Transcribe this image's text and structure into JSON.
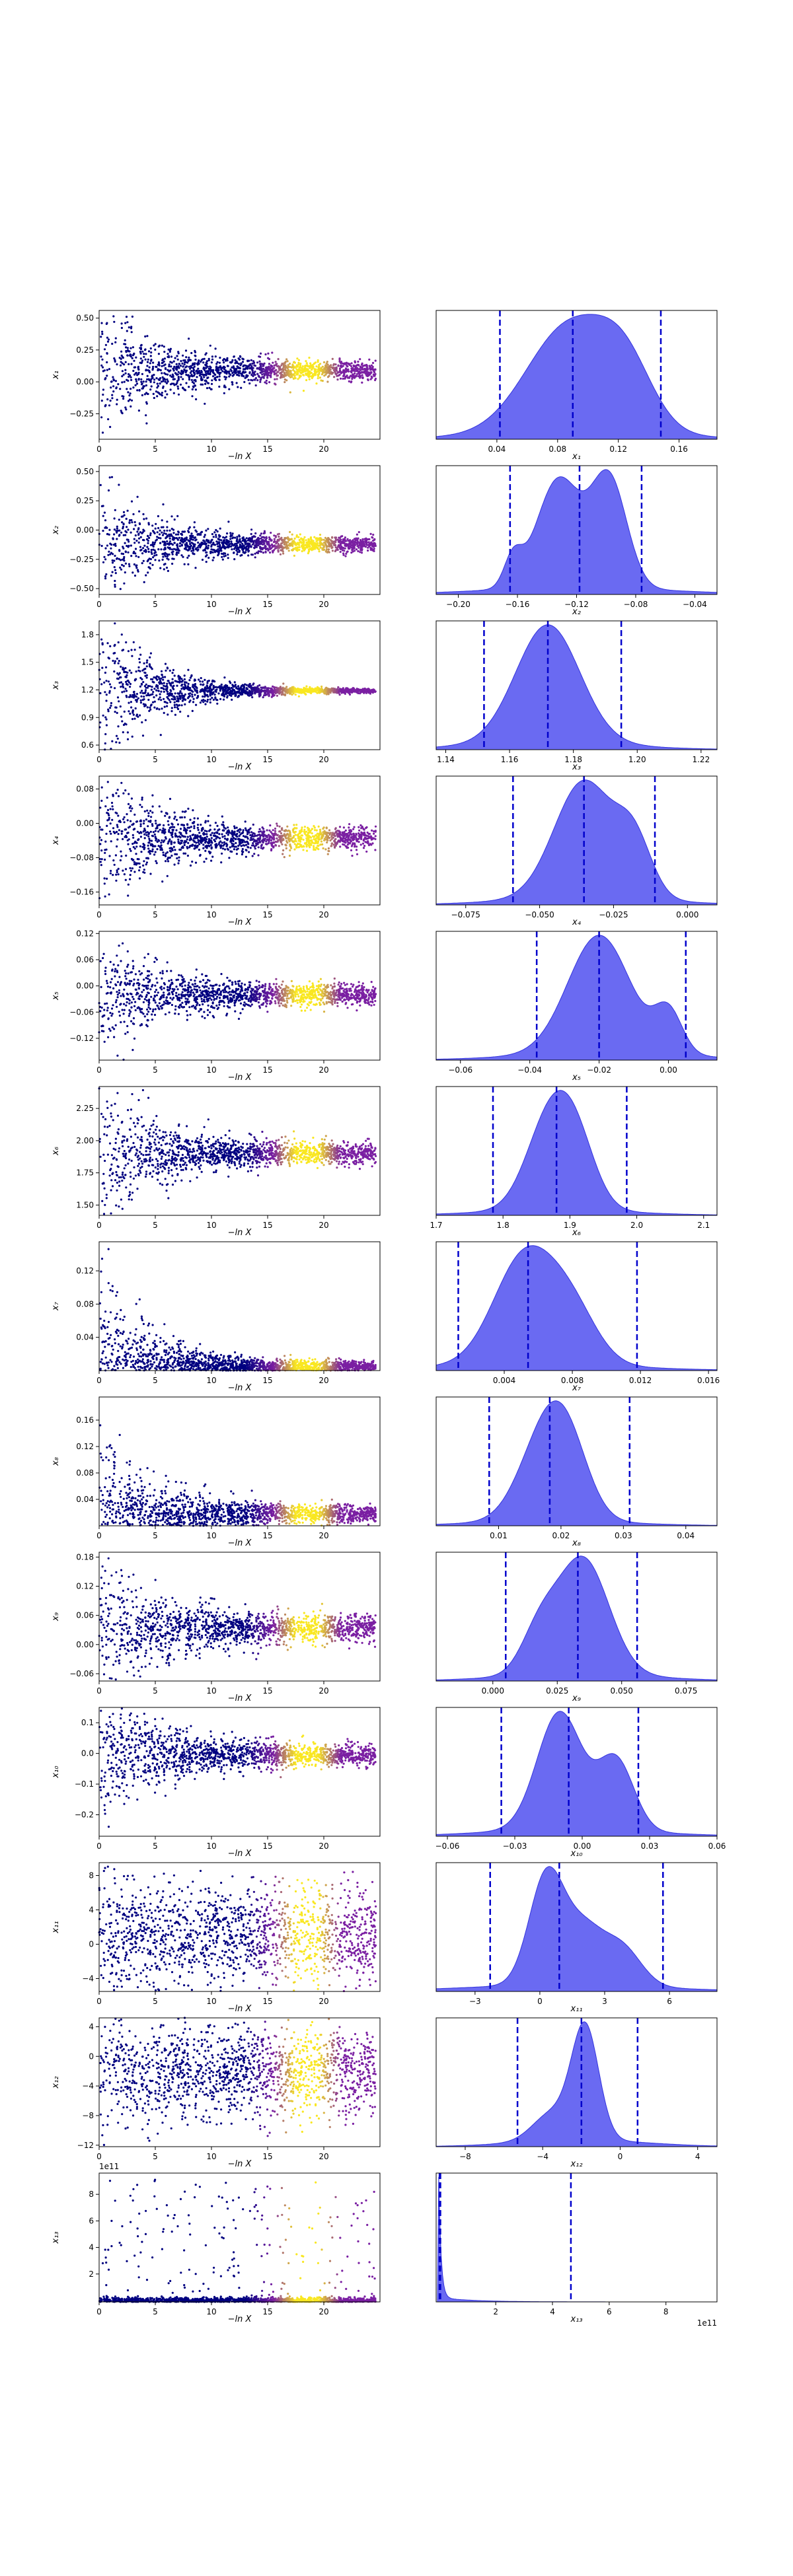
{
  "figure": {
    "type": "dynesty trace plot",
    "colors": {
      "points_low": "#000080",
      "points_mid": "#7a1fa2",
      "points_high": "#f9e721",
      "kde_fill": "#5050f0",
      "kde_edge": "#3333dd",
      "quantile_line": "#0000cc"
    }
  },
  "chart_data": [
    {
      "name": "x1",
      "type": "scatter",
      "xlabel": "−ln X",
      "ylabel": "x₁",
      "xlim": [
        0,
        25
      ],
      "xticks": [
        0,
        5,
        10,
        15,
        20
      ],
      "ylim": [
        -0.45,
        0.56
      ],
      "yticks": [
        -0.25,
        0.0,
        0.25,
        0.5
      ],
      "ytick_labels": [
        "−0.25",
        "0.00",
        "0.25",
        "0.50"
      ],
      "posterior": {
        "type": "area",
        "xlabel": "x₁",
        "xlim": [
          0.0,
          0.185
        ],
        "xticks": [
          0.04,
          0.08,
          0.12,
          0.16
        ],
        "xtick_labels": [
          "0.04",
          "0.08",
          "0.12",
          "0.16"
        ],
        "quantiles": [
          0.042,
          0.09,
          0.148
        ],
        "mean": 0.092,
        "sd": 0.027,
        "peaks": [
          [
            0.088,
            0.028,
            1.0
          ],
          [
            0.125,
            0.018,
            0.5
          ]
        ]
      },
      "trace": {
        "center": 0.09,
        "early_spread": 0.3,
        "late_spread": 0.035
      }
    },
    {
      "name": "x2",
      "type": "scatter",
      "xlabel": "−ln X",
      "ylabel": "x₂",
      "xlim": [
        0,
        25
      ],
      "xticks": [
        0,
        5,
        10,
        15,
        20
      ],
      "ylim": [
        -0.55,
        0.55
      ],
      "yticks": [
        -0.5,
        -0.25,
        0.0,
        0.25,
        0.5
      ],
      "ytick_labels": [
        "−0.50",
        "−0.25",
        "0.00",
        "0.25",
        "0.50"
      ],
      "posterior": {
        "type": "area",
        "xlabel": "x₂",
        "xlim": [
          -0.215,
          -0.025
        ],
        "xticks": [
          -0.2,
          -0.16,
          -0.12,
          -0.08,
          -0.04
        ],
        "xtick_labels": [
          "−0.20",
          "−0.16",
          "−0.12",
          "−0.08",
          "−0.04"
        ],
        "quantiles": [
          -0.165,
          -0.118,
          -0.076
        ],
        "mean": -0.12,
        "sd": 0.028,
        "peaks": [
          [
            -0.132,
            0.015,
            0.95
          ],
          [
            -0.098,
            0.012,
            0.95
          ],
          [
            -0.163,
            0.006,
            0.25
          ]
        ]
      },
      "trace": {
        "center": -0.12,
        "early_spread": 0.3,
        "late_spread": 0.03
      }
    },
    {
      "name": "x3",
      "type": "scatter",
      "xlabel": "−ln X",
      "ylabel": "x₃",
      "xlim": [
        0,
        25
      ],
      "xticks": [
        0,
        5,
        10,
        15,
        20
      ],
      "ylim": [
        0.55,
        1.95
      ],
      "yticks": [
        0.6,
        0.9,
        1.2,
        1.5,
        1.8
      ],
      "ytick_labels": [
        "0.6",
        "0.9",
        "1.2",
        "1.5",
        "1.8"
      ],
      "posterior": {
        "type": "area",
        "xlabel": "x₃",
        "xlim": [
          1.137,
          1.225
        ],
        "xticks": [
          1.14,
          1.16,
          1.18,
          1.2,
          1.22
        ],
        "xtick_labels": [
          "1.14",
          "1.16",
          "1.18",
          "1.20",
          "1.22"
        ],
        "quantiles": [
          1.152,
          1.172,
          1.195
        ],
        "mean": 1.172,
        "sd": 0.011,
        "peaks": [
          [
            1.172,
            0.01,
            1.0
          ]
        ]
      },
      "trace": {
        "center": 1.19,
        "early_spread": 0.45,
        "late_spread": 0.01
      }
    },
    {
      "name": "x4",
      "type": "scatter",
      "xlabel": "−ln X",
      "ylabel": "x₄",
      "xlim": [
        0,
        25
      ],
      "xticks": [
        0,
        5,
        10,
        15,
        20
      ],
      "ylim": [
        -0.19,
        0.11
      ],
      "yticks": [
        -0.16,
        -0.08,
        0.0,
        0.08
      ],
      "ytick_labels": [
        "−0.16",
        "−0.08",
        "0.00",
        "0.08"
      ],
      "posterior": {
        "type": "area",
        "xlabel": "x₄",
        "xlim": [
          -0.085,
          0.01
        ],
        "xticks": [
          -0.075,
          -0.05,
          -0.025,
          0.0
        ],
        "xtick_labels": [
          "−0.075",
          "−0.050",
          "−0.025",
          "0.000"
        ],
        "quantiles": [
          -0.059,
          -0.035,
          -0.011
        ],
        "mean": -0.035,
        "sd": 0.012,
        "peaks": [
          [
            -0.035,
            0.01,
            1.0
          ],
          [
            -0.018,
            0.006,
            0.45
          ]
        ]
      },
      "trace": {
        "center": -0.035,
        "early_spread": 0.09,
        "late_spread": 0.012
      }
    },
    {
      "name": "x5",
      "type": "scatter",
      "xlabel": "−ln X",
      "ylabel": "x₅",
      "xlim": [
        0,
        25
      ],
      "xticks": [
        0,
        5,
        10,
        15,
        20
      ],
      "ylim": [
        -0.17,
        0.125
      ],
      "yticks": [
        -0.12,
        -0.06,
        0.0,
        0.06,
        0.12
      ],
      "ytick_labels": [
        "−0.12",
        "−0.06",
        "0.00",
        "0.06",
        "0.12"
      ],
      "posterior": {
        "type": "area",
        "xlabel": "x₅",
        "xlim": [
          -0.067,
          0.014
        ],
        "xticks": [
          -0.06,
          -0.04,
          -0.02,
          0.0
        ],
        "xtick_labels": [
          "−0.06",
          "−0.04",
          "−0.02",
          "0.00"
        ],
        "quantiles": [
          -0.038,
          -0.02,
          0.005
        ],
        "mean": -0.018,
        "sd": 0.011,
        "peaks": [
          [
            -0.02,
            0.009,
            1.0
          ],
          [
            0.0,
            0.004,
            0.35
          ]
        ]
      },
      "trace": {
        "center": -0.02,
        "early_spread": 0.07,
        "late_spread": 0.012
      }
    },
    {
      "name": "x6",
      "type": "scatter",
      "xlabel": "−ln X",
      "ylabel": "x₆",
      "xlim": [
        0,
        25
      ],
      "xticks": [
        0,
        5,
        10,
        15,
        20
      ],
      "ylim": [
        1.42,
        2.42
      ],
      "yticks": [
        1.5,
        1.75,
        2.0,
        2.25
      ],
      "ytick_labels": [
        "1.50",
        "1.75",
        "2.00",
        "2.25"
      ],
      "posterior": {
        "type": "area",
        "xlabel": "x₆",
        "xlim": [
          1.7,
          2.12
        ],
        "xticks": [
          1.7,
          1.8,
          1.9,
          2.0,
          2.1
        ],
        "xtick_labels": [
          "1.7",
          "1.8",
          "1.9",
          "2.0",
          "2.1"
        ],
        "quantiles": [
          1.785,
          1.88,
          1.985
        ],
        "mean": 1.88,
        "sd": 0.05,
        "peaks": [
          [
            1.87,
            0.035,
            1.0
          ],
          [
            1.91,
            0.03,
            0.6
          ]
        ]
      },
      "trace": {
        "center": 1.9,
        "early_spread": 0.3,
        "late_spread": 0.04
      }
    },
    {
      "name": "x7",
      "type": "scatter",
      "xlabel": "−ln X",
      "ylabel": "x₇",
      "xlim": [
        0,
        25
      ],
      "xticks": [
        0,
        5,
        10,
        15,
        20
      ],
      "ylim": [
        0.0,
        0.155
      ],
      "yticks": [
        0.04,
        0.08,
        0.12
      ],
      "ytick_labels": [
        "0.04",
        "0.08",
        "0.12"
      ],
      "posterior": {
        "type": "area",
        "xlabel": "x₇",
        "xlim": [
          0.0,
          0.0165
        ],
        "xticks": [
          0.004,
          0.008,
          0.012,
          0.016
        ],
        "xtick_labels": [
          "0.004",
          "0.008",
          "0.012",
          "0.016"
        ],
        "quantiles": [
          0.0013,
          0.0054,
          0.0118
        ],
        "mean": 0.0055,
        "sd": 0.0025,
        "peaks": [
          [
            0.0052,
            0.0018,
            1.0
          ],
          [
            0.008,
            0.0015,
            0.45
          ]
        ]
      },
      "trace": {
        "center": 0.005,
        "early_spread": 0.06,
        "late_spread": 0.003,
        "positive": true
      }
    },
    {
      "name": "x8",
      "type": "scatter",
      "xlabel": "−ln X",
      "ylabel": "x₈",
      "xlim": [
        0,
        25
      ],
      "xticks": [
        0,
        5,
        10,
        15,
        20
      ],
      "ylim": [
        0.0,
        0.195
      ],
      "yticks": [
        0.04,
        0.08,
        0.12,
        0.16
      ],
      "ytick_labels": [
        "0.04",
        "0.08",
        "0.12",
        "0.16"
      ],
      "posterior": {
        "type": "area",
        "xlabel": "x₈",
        "xlim": [
          0.0,
          0.045
        ],
        "xticks": [
          0.01,
          0.02,
          0.03,
          0.04
        ],
        "xtick_labels": [
          "0.01",
          "0.02",
          "0.03",
          "0.04"
        ],
        "quantiles": [
          0.0085,
          0.0182,
          0.031
        ],
        "mean": 0.0185,
        "sd": 0.0055,
        "peaks": [
          [
            0.017,
            0.004,
            0.9
          ],
          [
            0.021,
            0.0035,
            0.8
          ]
        ]
      },
      "trace": {
        "center": 0.018,
        "early_spread": 0.07,
        "late_spread": 0.006,
        "positive": true
      }
    },
    {
      "name": "x9",
      "type": "scatter",
      "xlabel": "−ln X",
      "ylabel": "x₉",
      "xlim": [
        0,
        25
      ],
      "xticks": [
        0,
        5,
        10,
        15,
        20
      ],
      "ylim": [
        -0.075,
        0.19
      ],
      "yticks": [
        -0.06,
        0.0,
        0.06,
        0.12,
        0.18
      ],
      "ytick_labels": [
        "−0.06",
        "0.00",
        "0.06",
        "0.12",
        "0.18"
      ],
      "posterior": {
        "type": "area",
        "xlabel": "x₉",
        "xlim": [
          -0.022,
          0.087
        ],
        "xticks": [
          0.0,
          0.025,
          0.05,
          0.075
        ],
        "xtick_labels": [
          "0.000",
          "0.025",
          "0.050",
          "0.075"
        ],
        "quantiles": [
          0.005,
          0.033,
          0.056
        ],
        "mean": 0.033,
        "sd": 0.013,
        "peaks": [
          [
            0.035,
            0.01,
            1.0
          ],
          [
            0.018,
            0.007,
            0.35
          ]
        ]
      },
      "trace": {
        "center": 0.033,
        "early_spread": 0.08,
        "late_spread": 0.014
      }
    },
    {
      "name": "x10",
      "type": "scatter",
      "xlabel": "−ln X",
      "ylabel": "x₁₀",
      "xlim": [
        0,
        25
      ],
      "xticks": [
        0,
        5,
        10,
        15,
        20
      ],
      "ylim": [
        -0.27,
        0.15
      ],
      "yticks": [
        -0.2,
        -0.1,
        0.0,
        0.1
      ],
      "ytick_labels": [
        "−0.2",
        "−0.1",
        "0.0",
        "0.1"
      ],
      "posterior": {
        "type": "area",
        "xlabel": "x₁₀",
        "xlim": [
          -0.065,
          0.06
        ],
        "xticks": [
          -0.06,
          -0.03,
          0.0,
          0.03,
          0.06
        ],
        "xtick_labels": [
          "−0.06",
          "−0.03",
          "0.00",
          "0.03",
          "0.06"
        ],
        "quantiles": [
          -0.036,
          -0.006,
          0.025
        ],
        "mean": -0.006,
        "sd": 0.016,
        "peaks": [
          [
            -0.01,
            0.01,
            1.0
          ],
          [
            0.015,
            0.008,
            0.6
          ]
        ]
      },
      "trace": {
        "center": -0.006,
        "early_spread": 0.12,
        "late_spread": 0.018
      }
    },
    {
      "name": "x11",
      "type": "scatter",
      "xlabel": "−ln X",
      "ylabel": "x₁₁",
      "xlim": [
        0,
        25
      ],
      "xticks": [
        0,
        5,
        10,
        15,
        20
      ],
      "ylim": [
        -5.5,
        9.5
      ],
      "yticks": [
        -4,
        0,
        4,
        8
      ],
      "ytick_labels": [
        "−4",
        "0",
        "4",
        "8"
      ],
      "posterior": {
        "type": "area",
        "xlabel": "x₁₁",
        "xlim": [
          -4.8,
          8.2
        ],
        "xticks": [
          -3,
          0,
          3,
          6
        ],
        "xtick_labels": [
          "−3",
          "0",
          "3",
          "6"
        ],
        "quantiles": [
          -2.3,
          0.9,
          5.7
        ],
        "mean": 1.0,
        "sd": 2.0,
        "peaks": [
          [
            0.3,
            0.8,
            1.0
          ],
          [
            2.0,
            0.9,
            0.5
          ],
          [
            3.8,
            0.9,
            0.35
          ]
        ]
      },
      "trace": {
        "center": 1.0,
        "early_spread": 4.0,
        "late_spread": 3.0
      }
    },
    {
      "name": "x12",
      "type": "scatter",
      "xlabel": "−ln X",
      "ylabel": "x₁₂",
      "xlim": [
        0,
        25
      ],
      "xticks": [
        0,
        5,
        10,
        15,
        20
      ],
      "ylim": [
        -12.2,
        5.2
      ],
      "yticks": [
        -12,
        -8,
        -4,
        0,
        4
      ],
      "ytick_labels": [
        "−12",
        "−8",
        "−4",
        "0",
        "4"
      ],
      "posterior": {
        "type": "area",
        "xlabel": "x₁₂",
        "xlim": [
          -9.5,
          5.0
        ],
        "xticks": [
          -8,
          -4,
          0,
          4
        ],
        "xtick_labels": [
          "−8",
          "−4",
          "0",
          "4"
        ],
        "quantiles": [
          -5.3,
          -2.0,
          0.9
        ],
        "mean": -2.0,
        "sd": 1.5,
        "peaks": [
          [
            -1.8,
            0.7,
            1.0
          ],
          [
            -3.5,
            1.0,
            0.25
          ]
        ]
      },
      "trace": {
        "center": -2.0,
        "early_spread": 4.5,
        "late_spread": 3.0
      }
    },
    {
      "name": "x13",
      "type": "scatter",
      "xlabel": "−ln X",
      "ylabel": "x₁₃",
      "xlim": [
        0,
        25
      ],
      "xticks": [
        0,
        5,
        10,
        15,
        20
      ],
      "ylim": [
        -0.1,
        9.6
      ],
      "yticks": [
        2,
        4,
        6,
        8
      ],
      "ytick_labels": [
        "2",
        "4",
        "6",
        "8"
      ],
      "yexponent": "1e11",
      "posterior": {
        "type": "area",
        "xlabel": "x₁₃",
        "xlim": [
          -0.1,
          9.8
        ],
        "xticks": [
          2,
          4,
          6,
          8
        ],
        "xtick_labels": [
          "2",
          "4",
          "6",
          "8"
        ],
        "xexponent": "1e11",
        "quantiles": [
          0.02,
          0.05,
          4.65
        ],
        "skewed": true
      },
      "trace": {
        "center": 0.1,
        "early_spread": 3,
        "late_spread": 0.5,
        "heavy": true
      }
    }
  ]
}
